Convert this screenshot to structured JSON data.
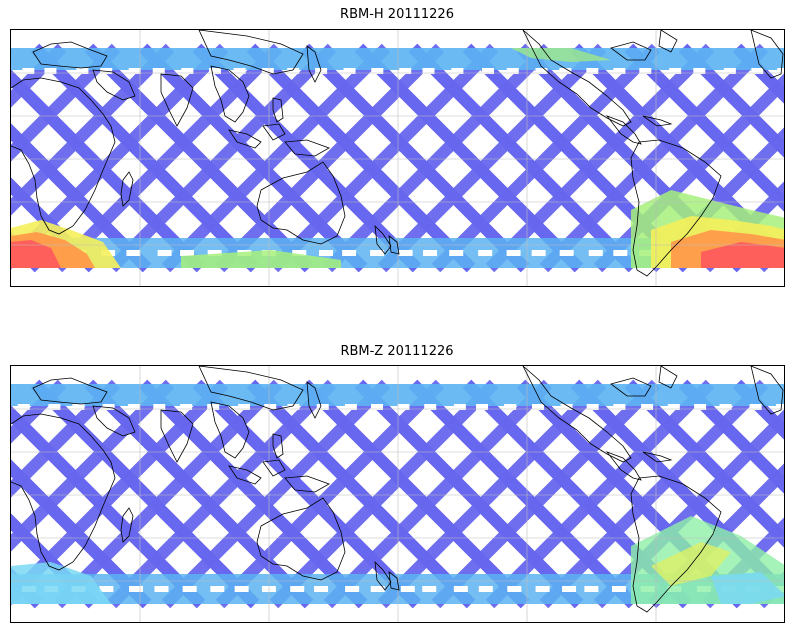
{
  "panels": [
    {
      "title": "RBM-H 20111226",
      "colors": {
        "swath": "#6666ee",
        "swath_light": "#5cb3f2",
        "warm_1": "#a6f07a",
        "warm_2": "#f5f05a",
        "warm_3": "#ff9a4a",
        "hot": "#ff5c5c"
      },
      "band_intensity": "high"
    },
    {
      "title": "RBM-Z 20111226",
      "colors": {
        "swath": "#6666ee",
        "swath_light": "#5cb3f2",
        "warm_1": "#8ef0a8",
        "warm_2": "#d9f06a",
        "warm_3": "#7ad8f5",
        "hot": "#8ef0a8"
      },
      "band_intensity": "low"
    }
  ],
  "colors": {
    "coast": "#000000",
    "grid": "#bdbdbd",
    "frame": "#000000",
    "background": "#ffffff"
  }
}
